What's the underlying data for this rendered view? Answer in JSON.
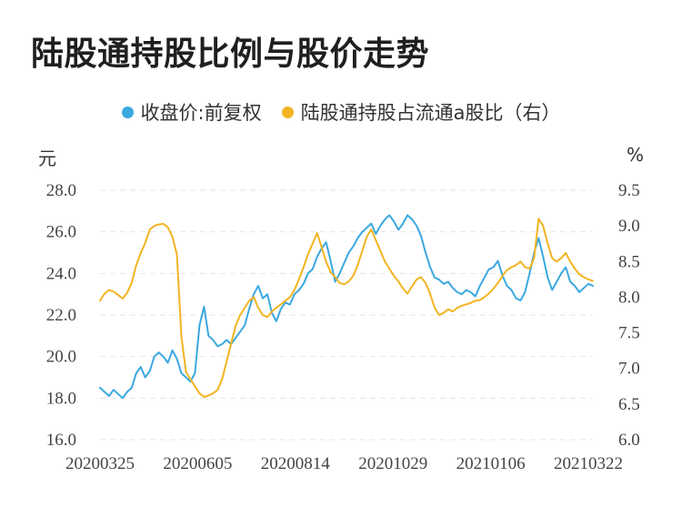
{
  "chart_data": {
    "type": "line",
    "title": "陆股通持股比例与股价走势",
    "left_unit": "元",
    "right_unit": "%",
    "series": [
      {
        "name": "收盘价:前复权",
        "axis": "left",
        "color": "#3ba8e0",
        "values": [
          18.5,
          18.3,
          18.1,
          18.4,
          18.2,
          18.0,
          18.3,
          18.5,
          19.2,
          19.5,
          19.0,
          19.3,
          20.0,
          20.2,
          20.0,
          19.7,
          20.3,
          19.9,
          19.2,
          19.0,
          18.8,
          19.2,
          21.5,
          22.4,
          21.0,
          20.8,
          20.5,
          20.6,
          20.8,
          20.6,
          20.9,
          21.2,
          21.5,
          22.3,
          23.0,
          23.4,
          22.8,
          23.0,
          22.1,
          21.7,
          22.3,
          22.6,
          22.5,
          23.0,
          23.2,
          23.5,
          24.0,
          24.2,
          24.8,
          25.2,
          25.5,
          24.6,
          23.6,
          24.0,
          24.5,
          25.0,
          25.3,
          25.7,
          26.0,
          26.2,
          26.4,
          25.9,
          26.3,
          26.6,
          26.8,
          26.5,
          26.1,
          26.4,
          26.8,
          26.6,
          26.3,
          25.8,
          25.0,
          24.3,
          23.8,
          23.7,
          23.5,
          23.6,
          23.3,
          23.1,
          23.0,
          23.2,
          23.1,
          22.9,
          23.4,
          23.8,
          24.2,
          24.3,
          24.6,
          23.9,
          23.4,
          23.2,
          22.8,
          22.7,
          23.1,
          24.0,
          25.0,
          25.7,
          24.8,
          23.8,
          23.2,
          23.6,
          24.0,
          24.3,
          23.6,
          23.4,
          23.1,
          23.3,
          23.5,
          23.4
        ],
        "series_index": 0
      },
      {
        "name": "陆股通持股占流通a股比（右）",
        "axis": "right",
        "color": "#f2b422",
        "values": [
          7.95,
          8.05,
          8.1,
          8.08,
          8.03,
          7.98,
          8.06,
          8.2,
          8.45,
          8.62,
          8.76,
          8.95,
          9.0,
          9.02,
          9.03,
          8.98,
          8.85,
          8.6,
          7.45,
          6.95,
          6.85,
          6.75,
          6.65,
          6.6,
          6.62,
          6.65,
          6.7,
          6.85,
          7.1,
          7.35,
          7.6,
          7.75,
          7.85,
          7.95,
          8.0,
          7.85,
          7.75,
          7.72,
          7.8,
          7.85,
          7.9,
          7.95,
          8.0,
          8.1,
          8.25,
          8.42,
          8.6,
          8.75,
          8.9,
          8.7,
          8.5,
          8.35,
          8.28,
          8.2,
          8.18,
          8.22,
          8.3,
          8.45,
          8.65,
          8.85,
          8.95,
          8.8,
          8.65,
          8.5,
          8.4,
          8.3,
          8.22,
          8.12,
          8.05,
          8.15,
          8.25,
          8.28,
          8.2,
          8.05,
          7.85,
          7.75,
          7.78,
          7.83,
          7.8,
          7.85,
          7.88,
          7.9,
          7.92,
          7.95,
          7.96,
          8.0,
          8.05,
          8.12,
          8.2,
          8.3,
          8.38,
          8.42,
          8.45,
          8.5,
          8.42,
          8.4,
          8.55,
          9.1,
          9.0,
          8.75,
          8.55,
          8.5,
          8.55,
          8.62,
          8.5,
          8.4,
          8.32,
          8.28,
          8.25,
          8.23
        ],
        "series_index": 1
      }
    ],
    "x_tick_labels": [
      "20200325",
      "20200605",
      "20200814",
      "20201029",
      "20210106",
      "20210322"
    ],
    "y_left": {
      "min": 16.0,
      "max": 28.0,
      "ticks": [
        "16.0",
        "18.0",
        "20.0",
        "22.0",
        "24.0",
        "26.0",
        "28.0"
      ]
    },
    "y_right": {
      "min": 6.0,
      "max": 9.5,
      "ticks": [
        "6.0",
        "6.5",
        "7.0",
        "7.5",
        "8.0",
        "8.5",
        "9.0",
        "9.5"
      ]
    },
    "grid": true,
    "legend_position": "top-center"
  }
}
